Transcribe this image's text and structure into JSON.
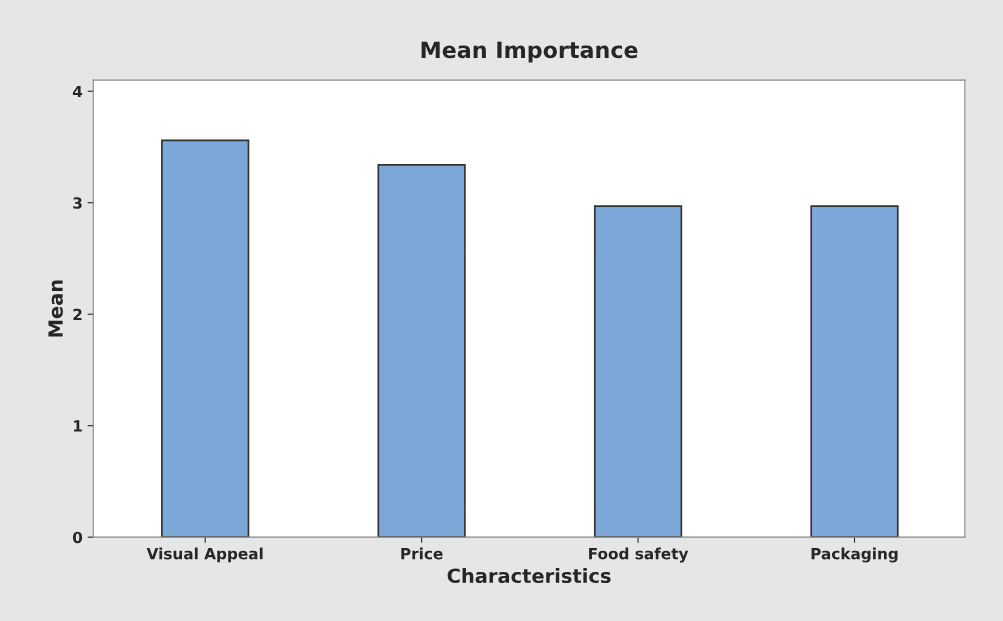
{
  "chart_data": {
    "type": "bar",
    "title": "Mean Importance",
    "xlabel": "Characteristics",
    "ylabel": "Mean",
    "categories": [
      "Visual Appeal",
      "Price",
      "Food safety",
      "Packaging"
    ],
    "values": [
      3.56,
      3.34,
      2.97,
      2.97
    ],
    "color": "#7ba7d9",
    "ylim": [
      0,
      4.1
    ],
    "yticks": [
      0,
      1,
      2,
      3,
      4
    ],
    "grid": false
  }
}
